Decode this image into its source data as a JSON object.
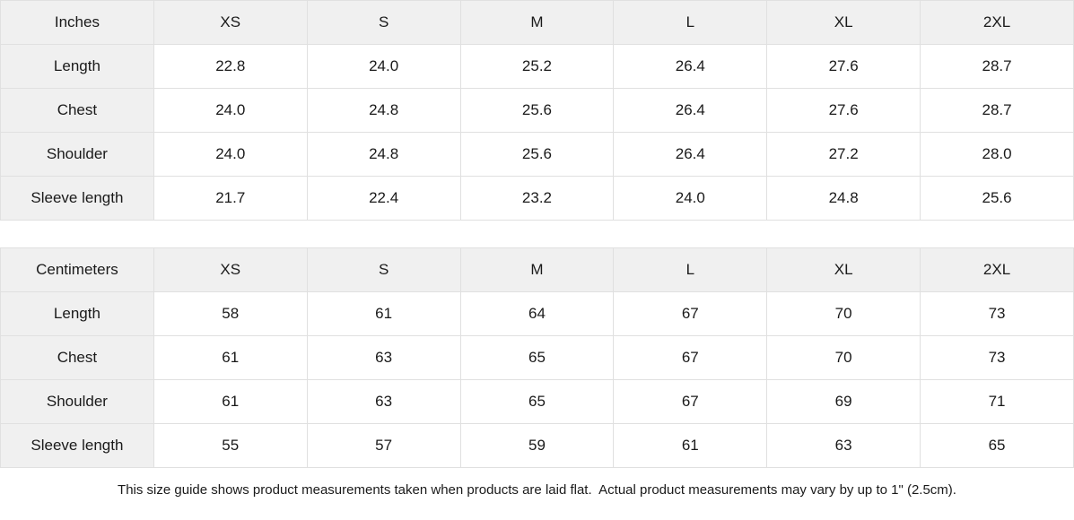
{
  "colors": {
    "header_bg": "#f0f0f0",
    "border": "#e0e0e0",
    "text": "#1a1a1a",
    "page_bg": "#ffffff"
  },
  "tables": [
    {
      "id": "inches",
      "unit_label": "Inches",
      "size_headers": [
        "XS",
        "S",
        "M",
        "L",
        "XL",
        "2XL"
      ],
      "rows": [
        {
          "label": "Length",
          "values": [
            "22.8",
            "24.0",
            "25.2",
            "26.4",
            "27.6",
            "28.7"
          ]
        },
        {
          "label": "Chest",
          "values": [
            "24.0",
            "24.8",
            "25.6",
            "26.4",
            "27.6",
            "28.7"
          ]
        },
        {
          "label": "Shoulder",
          "values": [
            "24.0",
            "24.8",
            "25.6",
            "26.4",
            "27.2",
            "28.0"
          ]
        },
        {
          "label": "Sleeve length",
          "values": [
            "21.7",
            "22.4",
            "23.2",
            "24.0",
            "24.8",
            "25.6"
          ]
        }
      ]
    },
    {
      "id": "centimeters",
      "unit_label": "Centimeters",
      "size_headers": [
        "XS",
        "S",
        "M",
        "L",
        "XL",
        "2XL"
      ],
      "rows": [
        {
          "label": "Length",
          "values": [
            "58",
            "61",
            "64",
            "67",
            "70",
            "73"
          ]
        },
        {
          "label": "Chest",
          "values": [
            "61",
            "63",
            "65",
            "67",
            "70",
            "73"
          ]
        },
        {
          "label": "Shoulder",
          "values": [
            "61",
            "63",
            "65",
            "67",
            "69",
            "71"
          ]
        },
        {
          "label": "Sleeve length",
          "values": [
            "55",
            "57",
            "59",
            "61",
            "63",
            "65"
          ]
        }
      ]
    }
  ],
  "footer": {
    "note": "This size guide shows product measurements taken when products are laid flat.  Actual product measurements may vary by up to 1\" (2.5cm)."
  }
}
